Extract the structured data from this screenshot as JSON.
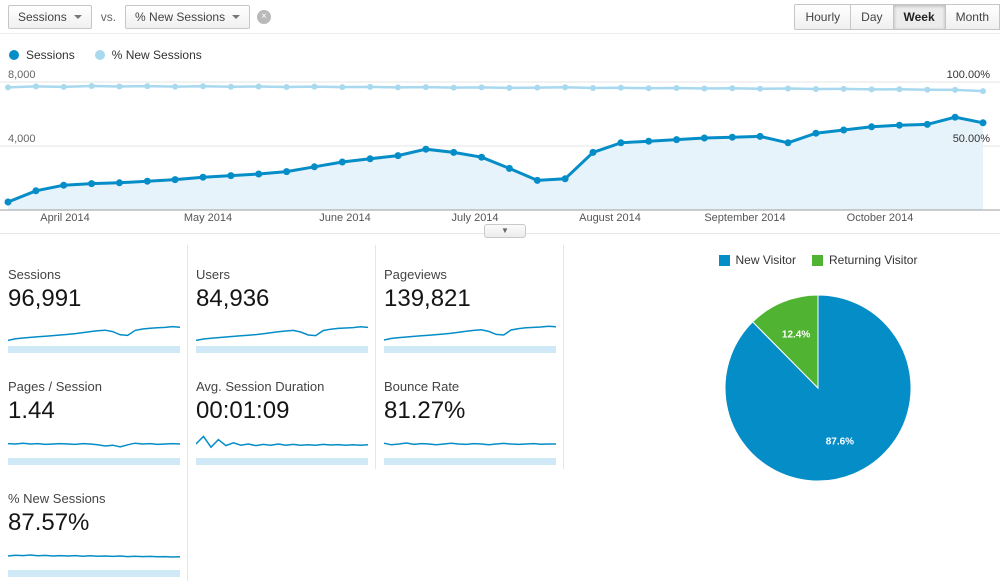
{
  "toolbar": {
    "metric_a": "Sessions",
    "vs": "vs.",
    "metric_b": "% New Sessions",
    "granularity": [
      "Hourly",
      "Day",
      "Week",
      "Month"
    ],
    "active_granularity": "Week"
  },
  "legend": {
    "sessions": "Sessions",
    "new_sessions": "% New Sessions"
  },
  "colors": {
    "primary": "#058dc7",
    "secondary": "#a8d9ef",
    "area": "#e7f3fa",
    "green": "#50b432",
    "spark_band": "#cfe9f6"
  },
  "chart_data": [
    {
      "type": "line",
      "title": "Sessions and % New Sessions by week",
      "x_tick_labels": [
        "April 2014",
        "May 2014",
        "June 2014",
        "July 2014",
        "August 2014",
        "September 2014",
        "October 2014"
      ],
      "left_axis": {
        "labels": [
          "8,000",
          "4,000"
        ],
        "max": 8000
      },
      "right_axis": {
        "labels": [
          "100.00%",
          "50.00%"
        ],
        "max": 100
      },
      "grid": true,
      "legend_position": "top-left",
      "series": [
        {
          "name": "Sessions",
          "axis": "left",
          "color": "#058dc7",
          "values": [
            500,
            1200,
            1550,
            1650,
            1700,
            1800,
            1900,
            2050,
            2150,
            2250,
            2400,
            2700,
            3000,
            3200,
            3400,
            3800,
            3600,
            3300,
            2600,
            1850,
            1950,
            3600,
            4200,
            4300,
            4400,
            4500,
            4550,
            4600,
            4200,
            4800,
            5000,
            5200,
            5300,
            5350,
            5800,
            5450
          ]
        },
        {
          "name": "% New Sessions",
          "axis": "right",
          "color": "#a8d9ef",
          "values": [
            95.8,
            96.6,
            96.2,
            96.9,
            96.5,
            96.8,
            96.4,
            96.7,
            96.3,
            96.5,
            96.1,
            96.4,
            96.0,
            96.2,
            95.8,
            96.0,
            95.6,
            95.8,
            95.4,
            95.6,
            95.9,
            95.3,
            95.5,
            95.1,
            95.3,
            94.9,
            95.1,
            94.7,
            94.9,
            94.5,
            94.6,
            94.2,
            94.3,
            93.9,
            93.8,
            92.9
          ]
        }
      ]
    },
    {
      "type": "pie",
      "title": "New vs Returning Visitors",
      "slices": [
        {
          "label": "New Visitor",
          "value": 87.6,
          "display": "87.6%",
          "color": "#058dc7"
        },
        {
          "label": "Returning Visitor",
          "value": 12.4,
          "display": "12.4%",
          "color": "#50b432"
        }
      ]
    }
  ],
  "metrics": [
    {
      "label": "Sessions",
      "value": "96,991",
      "sparkline": [
        0.08,
        0.16,
        0.2,
        0.23,
        0.26,
        0.29,
        0.32,
        0.35,
        0.38,
        0.42,
        0.47,
        0.52,
        0.56,
        0.59,
        0.52,
        0.36,
        0.33,
        0.58,
        0.65,
        0.69,
        0.71,
        0.73,
        0.77,
        0.74
      ]
    },
    {
      "label": "Users",
      "value": "84,936",
      "sparkline": [
        0.08,
        0.15,
        0.19,
        0.22,
        0.25,
        0.28,
        0.31,
        0.34,
        0.37,
        0.41,
        0.46,
        0.51,
        0.55,
        0.58,
        0.5,
        0.35,
        0.32,
        0.57,
        0.64,
        0.68,
        0.7,
        0.72,
        0.76,
        0.73
      ]
    },
    {
      "label": "Pageviews",
      "value": "139,821",
      "sparkline": [
        0.1,
        0.18,
        0.22,
        0.25,
        0.28,
        0.31,
        0.34,
        0.37,
        0.4,
        0.44,
        0.49,
        0.54,
        0.58,
        0.61,
        0.53,
        0.38,
        0.35,
        0.6,
        0.67,
        0.71,
        0.73,
        0.75,
        0.79,
        0.76
      ]
    },
    {
      "label": "Pages / Session",
      "value": "1.44",
      "sparkline": [
        0.52,
        0.5,
        0.54,
        0.5,
        0.52,
        0.48,
        0.5,
        0.52,
        0.5,
        0.48,
        0.52,
        0.5,
        0.46,
        0.4,
        0.44,
        0.36,
        0.46,
        0.54,
        0.5,
        0.52,
        0.48,
        0.5,
        0.52,
        0.5
      ]
    },
    {
      "label": "Avg. Session Duration",
      "value": "00:01:09",
      "sparkline": [
        0.5,
        0.88,
        0.34,
        0.72,
        0.42,
        0.56,
        0.44,
        0.5,
        0.42,
        0.48,
        0.44,
        0.5,
        0.44,
        0.48,
        0.44,
        0.46,
        0.44,
        0.48,
        0.45,
        0.47,
        0.44,
        0.46,
        0.44,
        0.46
      ]
    },
    {
      "label": "Bounce Rate",
      "value": "81.27%",
      "sparkline": [
        0.54,
        0.46,
        0.5,
        0.55,
        0.48,
        0.52,
        0.5,
        0.46,
        0.5,
        0.54,
        0.5,
        0.48,
        0.52,
        0.5,
        0.46,
        0.5,
        0.53,
        0.5,
        0.48,
        0.5,
        0.52,
        0.49,
        0.5,
        0.5
      ]
    },
    {
      "label": "% New Sessions",
      "value": "87.57%",
      "sparkline": [
        0.5,
        0.54,
        0.52,
        0.55,
        0.51,
        0.53,
        0.5,
        0.52,
        0.5,
        0.52,
        0.49,
        0.51,
        0.49,
        0.5,
        0.48,
        0.5,
        0.47,
        0.49,
        0.47,
        0.48,
        0.46,
        0.47,
        0.45,
        0.46
      ]
    }
  ]
}
